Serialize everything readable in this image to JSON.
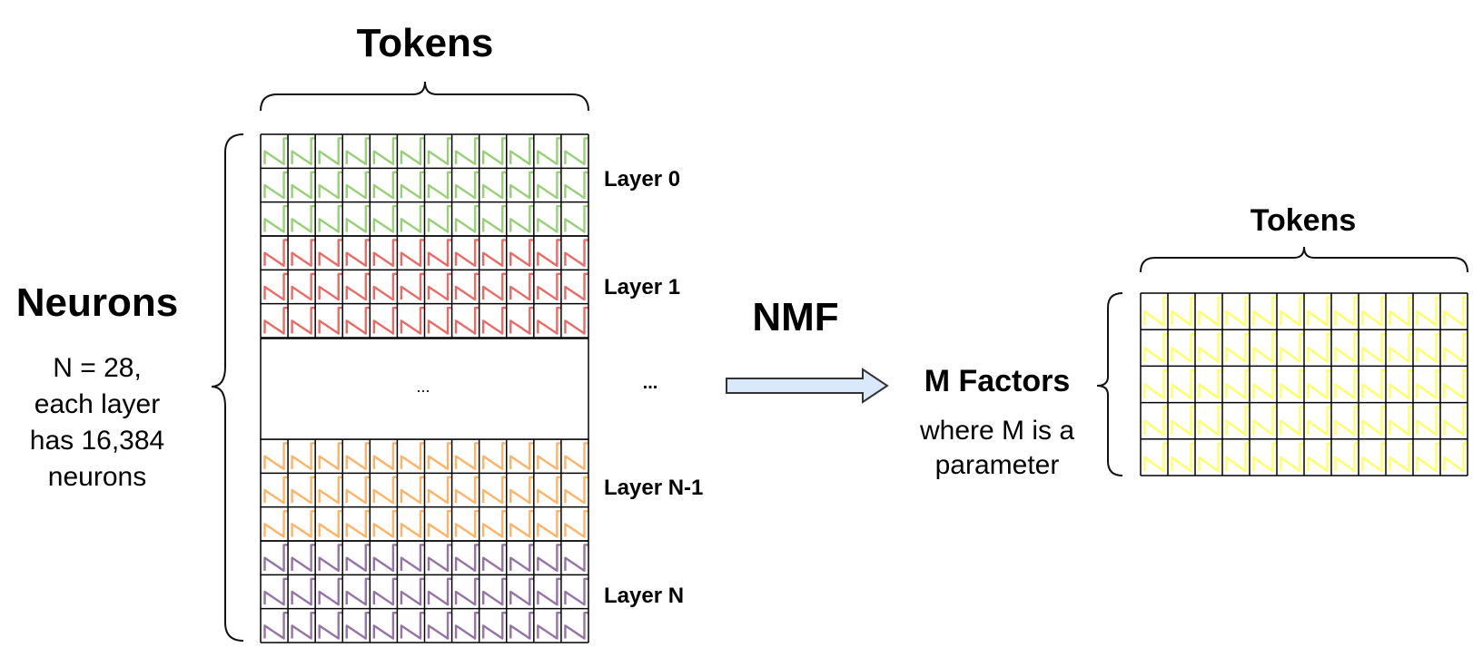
{
  "left_matrix": {
    "tokens_label": "Tokens",
    "neurons_label": "Neurons",
    "neurons_description": [
      "N = 28,",
      "each layer",
      "has 16,384",
      "neurons"
    ],
    "middle_ellipsis": "...",
    "gap_label": "...",
    "columns": 12,
    "layers": [
      {
        "label": "Layer 0",
        "color": "#97d077",
        "rows": 3
      },
      {
        "label": "Layer 1",
        "color": "#ea6b66",
        "rows": 3
      },
      {
        "label": "Layer N-1",
        "color": "#ffb366",
        "rows": 3
      },
      {
        "label": "Layer N",
        "color": "#9673a6",
        "rows": 3
      }
    ]
  },
  "operation": {
    "label": "NMF"
  },
  "right_matrix": {
    "tokens_label": "Tokens",
    "factors_label": "M Factors",
    "factors_description": [
      "where M is a",
      "parameter"
    ],
    "columns": 12,
    "rows": 5,
    "color": "#ffff66"
  },
  "colors": {
    "grid_line": "#000000",
    "arrow_fill": "#dae8fc",
    "arrow_stroke": "#333333"
  }
}
